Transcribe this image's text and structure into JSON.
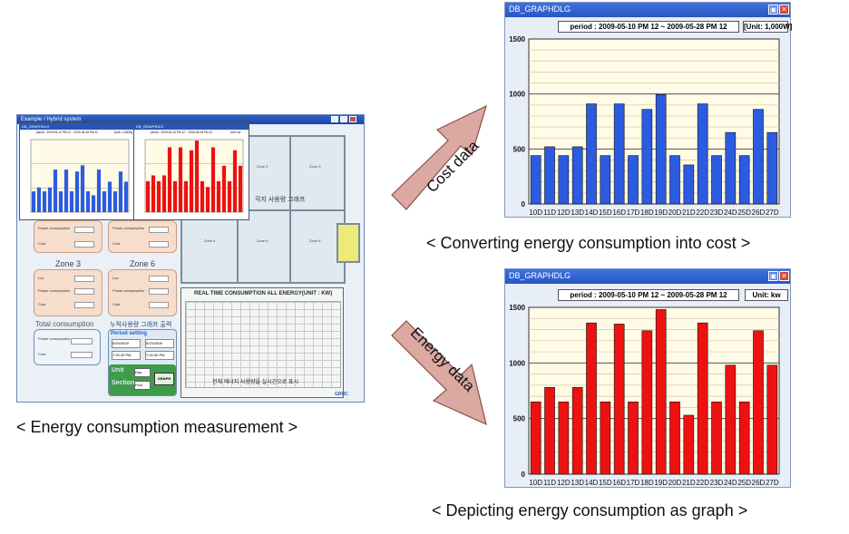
{
  "captions": {
    "left": "< Energy consumption measurement  >",
    "top_right": "< Converting energy consumption into cost  >",
    "bottom_right": "< Depicting energy consumption as graph  >"
  },
  "arrows": {
    "top": "Cost data",
    "bottom": "Energy data",
    "color": "#d9a8a0"
  },
  "app": {
    "title": "Example / Hybrid system",
    "mini_window_title": "DB_GRAPHDLG",
    "zones_left": [
      {
        "title": "",
        "rows": [
          "Power consumption",
          "Cost"
        ]
      },
      {
        "title": "Zone 3",
        "rows": [
          "Lux",
          "Power consumption",
          "Cost"
        ]
      }
    ],
    "zones_mid": [
      {
        "title": "",
        "rows": [
          "Power consumption",
          "Cost"
        ]
      },
      {
        "title": "Zone 6",
        "rows": [
          "Lux",
          "Power consumption",
          "Cost"
        ]
      }
    ],
    "total_title": "Total consumption",
    "total_rows": [
      "Power consumption",
      "Cost"
    ],
    "graph_output_label": "누적사용량 그래프 출력",
    "period_setting": "Period setting",
    "date_from": "5/20/2009",
    "date_to": "5/23/2009",
    "time_from": "7:20:40 PM",
    "time_to": "7:20:40 PM",
    "unit_label": "Unit",
    "unit_value": "Day",
    "section_label": "Section",
    "section_value": "Find",
    "graph_button": "GRAPH",
    "floor_zones": [
      "Zone 2",
      "Zone 3",
      "Zone 4",
      "Zone 5",
      "Zone 6"
    ],
    "overlay_text": "각지 사용량 그래프",
    "realtime_title": "REAL TIME CONSUMPTION ALL ENERGY(UNIT : KW)",
    "realtime_note": "전체 에너지 사용량을 실시간으로 표시",
    "logo_text": "GRRC",
    "mini_period": "period : 2009-05-10 PM 12 ~ 2009-05-28 PM 12",
    "mini_unit_cost": "[Unit: 1,000W]",
    "mini_unit_energy": "Unit: kw",
    "mini_blue_values": [
      430,
      510,
      430,
      510,
      880,
      430,
      880,
      430,
      840,
      970,
      430,
      350,
      880,
      430,
      630,
      430,
      840,
      630
    ],
    "mini_red_values": [
      640,
      760,
      640,
      760,
      1340,
      640,
      1340,
      640,
      1280,
      1480,
      640,
      520,
      1340,
      640,
      960,
      640,
      1280,
      960
    ]
  },
  "cost_window": {
    "title": "DB_GRAPHDLG",
    "period": "period : 2009-05-10 PM 12 ~ 2009-05-28 PM 12",
    "unit": "[Unit: 1,000W]",
    "color": "#2b5be0"
  },
  "energy_window": {
    "title": "DB_GRAPHDLG",
    "period": "period : 2009-05-10 PM 12 ~ 2009-05-28 PM 12",
    "unit": "Unit: kw",
    "color": "#ee1111"
  },
  "chart_data": [
    {
      "type": "bar",
      "title": "",
      "categories": [
        "10D",
        "11D",
        "12D",
        "13D",
        "14D",
        "15D",
        "16D",
        "17D",
        "18D",
        "19D",
        "20D",
        "21D",
        "22D",
        "23D",
        "24D",
        "25D",
        "26D",
        "27D"
      ],
      "values": [
        440,
        520,
        440,
        520,
        910,
        440,
        910,
        440,
        860,
        995,
        440,
        355,
        910,
        440,
        650,
        440,
        860,
        650
      ],
      "yticks": [
        0,
        500,
        1000,
        1500
      ],
      "ylim": [
        0,
        1500
      ],
      "grid": true,
      "legend": "none"
    },
    {
      "type": "bar",
      "title": "",
      "categories": [
        "10D",
        "11D",
        "12D",
        "13D",
        "14D",
        "15D",
        "16D",
        "17D",
        "18D",
        "19D",
        "20D",
        "21D",
        "22D",
        "23D",
        "24D",
        "25D",
        "26D",
        "27D"
      ],
      "values": [
        650,
        780,
        650,
        780,
        1360,
        650,
        1350,
        650,
        1290,
        1480,
        650,
        530,
        1360,
        650,
        980,
        650,
        1290,
        980
      ],
      "yticks": [
        0,
        500,
        1000,
        1500
      ],
      "ylim": [
        0,
        1500
      ],
      "grid": true,
      "legend": "none"
    }
  ]
}
